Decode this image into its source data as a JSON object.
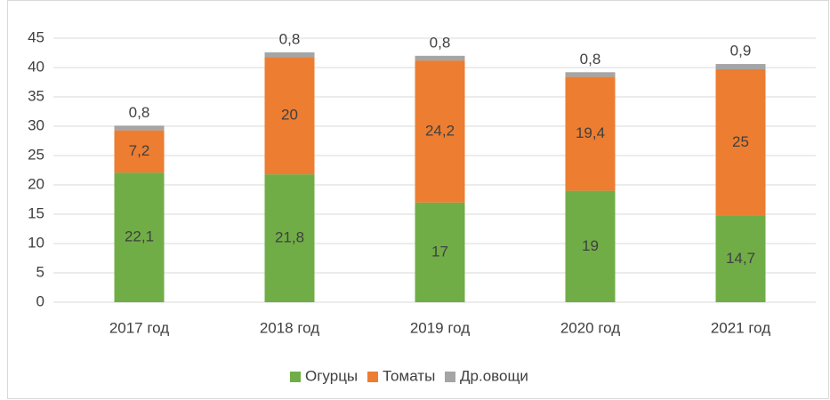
{
  "chart_data": {
    "type": "stacked_bar",
    "categories": [
      "2017 год",
      "2018 год",
      "2019 год",
      "2020 год",
      "2021 год"
    ],
    "series": [
      {
        "name": "Огурцы",
        "color": "#70ad47",
        "values": [
          22.1,
          21.8,
          17,
          19,
          14.7
        ],
        "value_labels": [
          "22,1",
          "21,8",
          "17",
          "19",
          "14,7"
        ]
      },
      {
        "name": "Томаты",
        "color": "#ed7d31",
        "values": [
          7.2,
          20,
          24.2,
          19.4,
          25
        ],
        "value_labels": [
          "7,2",
          "20",
          "24,2",
          "19,4",
          "25"
        ]
      },
      {
        "name": "Др.овощи",
        "color": "#a5a5a5",
        "values": [
          0.8,
          0.8,
          0.8,
          0.8,
          0.9
        ],
        "value_labels": [
          "0,8",
          "0,8",
          "0,8",
          "0,8",
          "0,9"
        ]
      }
    ],
    "ylim": [
      0,
      45
    ],
    "yticks": [
      0,
      5,
      10,
      15,
      20,
      25,
      30,
      35,
      40,
      45
    ],
    "grid": true,
    "legend": "bottom"
  }
}
